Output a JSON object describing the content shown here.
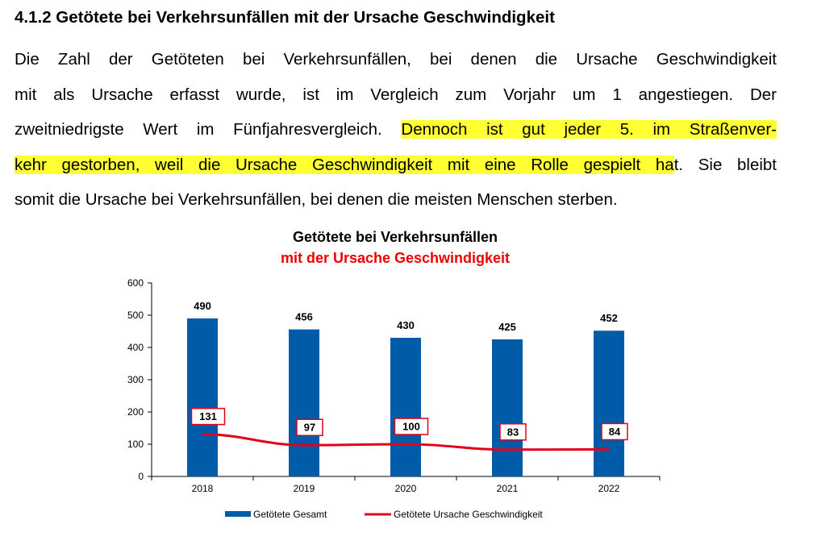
{
  "section": {
    "heading": "4.1.2 Getötete bei Verkehrsunfällen mit der Ursache Geschwindigkeit",
    "paragraph": {
      "line1": "Die Zahl der Getöteten bei Verkehrsunfällen, bei denen die Ursache Geschwindigkeit",
      "line2": "mit als Ursache erfasst wurde, ist im Vergleich zum Vorjahr um 1 angestiegen. Der",
      "line3_plain": "zweitniedrigste Wert im Fünfjahresvergleich. ",
      "line3_highlight": "Dennoch ist gut jeder 5. im Straßenver-",
      "line4_highlight": "kehr gestorben, weil die Ursache Geschwindigkeit mit eine Rolle gespielt ha",
      "line4_plain": "t. Sie bleibt",
      "line5": "somit die Ursache bei Verkehrsunfällen, bei denen die meisten Menschen sterben."
    }
  },
  "colors": {
    "highlight": "#ffff33",
    "bar": "#005ca9",
    "line": "#e2001a",
    "subtitle": "#ee0000"
  },
  "chart_data": {
    "type": "bar",
    "title": "Getötete bei Verkehrsunfällen",
    "subtitle": "mit der Ursache Geschwindigkeit",
    "categories": [
      "2018",
      "2019",
      "2020",
      "2021",
      "2022"
    ],
    "series": [
      {
        "name": "Getötete Gesamt",
        "type": "bar",
        "values": [
          490,
          456,
          430,
          425,
          452
        ]
      },
      {
        "name": "Getötete Ursache Geschwindigkeit",
        "type": "line",
        "values": [
          131,
          97,
          100,
          83,
          84
        ]
      }
    ],
    "y_ticks": [
      "0",
      "100",
      "200",
      "300",
      "400",
      "500",
      "600"
    ],
    "ylim": [
      0,
      600
    ],
    "xlabel": "",
    "ylabel": "",
    "legend_position": "bottom"
  }
}
